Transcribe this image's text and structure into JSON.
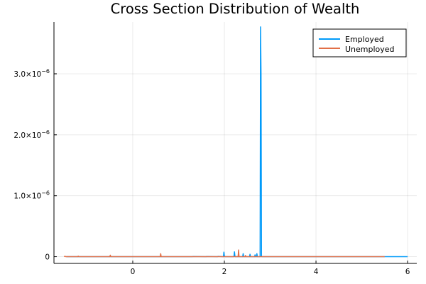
{
  "chart_data": {
    "type": "line",
    "title": "Cross Section Distribution of Wealth",
    "xlabel": "",
    "ylabel": "",
    "xlim": [
      -1.72,
      6.2
    ],
    "ylim": [
      -1.1e-07,
      3.85e-06
    ],
    "grid": true,
    "legend_position": "top-right",
    "x_ticks": [
      {
        "value": 0,
        "label": "0"
      },
      {
        "value": 2,
        "label": "2"
      },
      {
        "value": 4,
        "label": "4"
      },
      {
        "value": 6,
        "label": "6"
      }
    ],
    "y_ticks": [
      {
        "value": 0,
        "mantissa": "0",
        "exp": ""
      },
      {
        "value": 1e-06,
        "mantissa": "1.0×10",
        "exp": "−6"
      },
      {
        "value": 2e-06,
        "mantissa": "2.0×10",
        "exp": "−6"
      },
      {
        "value": 3e-06,
        "mantissa": "3.0×10",
        "exp": "−6"
      }
    ],
    "series": [
      {
        "name": "Employed",
        "color": "#009af9",
        "x": [
          -1.45,
          1.0,
          1.3,
          1.31,
          1.6,
          1.61,
          1.85,
          1.86,
          1.98,
          1.99,
          2.0,
          2.01,
          2.02,
          2.2,
          2.21,
          2.22,
          2.23,
          2.24,
          2.4,
          2.41,
          2.42,
          2.55,
          2.56,
          2.57,
          2.66,
          2.67,
          2.68,
          2.7,
          2.71,
          2.72,
          2.78,
          2.79,
          2.8,
          2.81,
          2.82,
          3.2,
          6.0
        ],
        "y": [
          0,
          0,
          0,
          3e-09,
          0,
          4e-09,
          0,
          5e-09,
          0,
          7.5e-08,
          1e-08,
          5e-09,
          0,
          0,
          5e-09,
          8e-08,
          1e-08,
          0,
          0,
          5e-08,
          0,
          0,
          4e-08,
          0,
          0,
          3e-08,
          0,
          0,
          5e-08,
          0,
          0,
          3.77e-06,
          3e-06,
          1e-08,
          0,
          0,
          0
        ]
      },
      {
        "name": "Unemployed",
        "color": "#e26f46",
        "x": [
          -1.5,
          -1.48,
          -1.46,
          -1.2,
          -1.19,
          -1.18,
          -0.5,
          -0.49,
          -0.48,
          0.6,
          0.61,
          0.62,
          2.3,
          2.31,
          2.32,
          2.45,
          2.46,
          2.47,
          5.5
        ],
        "y": [
          0,
          8e-09,
          0,
          0,
          1e-08,
          0,
          0,
          2.5e-08,
          0,
          0,
          5e-08,
          0,
          0,
          1.1e-07,
          0,
          0,
          2e-08,
          0,
          0
        ]
      }
    ]
  }
}
